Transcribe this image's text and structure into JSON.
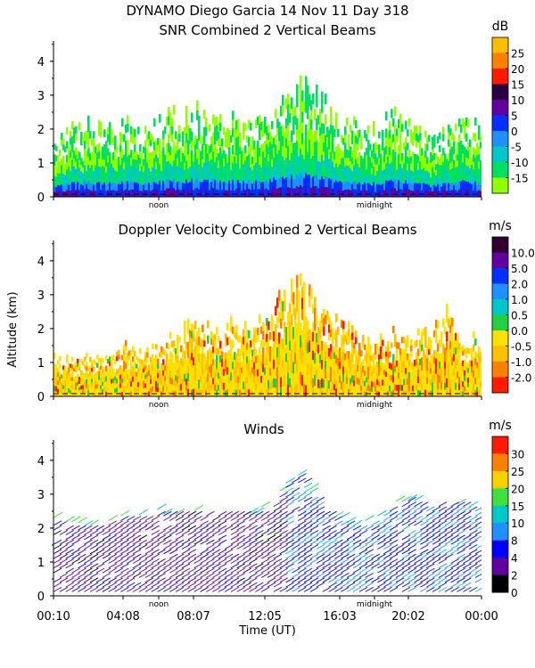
{
  "header": {
    "line1": "DYNAMO Diego Garcia  14 Nov 11 Day 318",
    "line2": "SNR Combined 2 Vertical Beams"
  },
  "shared": {
    "ylabel": "Altitude (km)",
    "xlabel": "Time (UT)",
    "marker_noon": "noon",
    "marker_midnight": "midnight"
  },
  "chart_data": [
    {
      "type": "heatmap",
      "title": "SNR Combined 2 Vertical Beams",
      "ylabel": "Altitude (km)",
      "ylim": [
        0,
        4.6
      ],
      "yticks": [
        0,
        1,
        2,
        3,
        4
      ],
      "markers": [
        "noon",
        "midnight"
      ],
      "colorbar": {
        "unit": "dB",
        "ticks": [
          "25",
          "20",
          "15",
          "10",
          "5",
          "0",
          "-5",
          "-10",
          "-15"
        ],
        "colors": [
          "#ffbf00",
          "#ff8000",
          "#ff1a00",
          "#2a0040",
          "#6000a0",
          "#0030ff",
          "#1e90ff",
          "#00c8c8",
          "#00e060",
          "#90ff00"
        ]
      },
      "envelope": {
        "x_hours": [
          0,
          1,
          2,
          3,
          4,
          5,
          6,
          7,
          8,
          9,
          10,
          11,
          12,
          13,
          14,
          15,
          16,
          17,
          18,
          19,
          20,
          21,
          22,
          23,
          24
        ],
        "echo_top_km": [
          1.6,
          2.1,
          2.2,
          2.2,
          2.3,
          2.2,
          2.4,
          2.5,
          2.6,
          2.5,
          2.4,
          2.3,
          2.5,
          3.0,
          3.4,
          3.2,
          2.3,
          2.4,
          2.0,
          2.5,
          2.3,
          1.8,
          2.0,
          2.4,
          2.0
        ]
      }
    },
    {
      "type": "heatmap",
      "title": "Doppler Velocity Combined 2 Vertical Beams",
      "ylabel": "Altitude (km)",
      "ylim": [
        0,
        4.6
      ],
      "yticks": [
        0,
        1,
        2,
        3,
        4
      ],
      "markers": [
        "noon",
        "midnight"
      ],
      "colorbar": {
        "unit": "m/s",
        "ticks": [
          "10.0",
          "5.0",
          "2.0",
          "1.0",
          "0.5",
          "0.0",
          "-0.5",
          "-1.0",
          "-2.0"
        ],
        "colors": [
          "#300030",
          "#6000a0",
          "#0030ff",
          "#1e90ff",
          "#00c8c8",
          "#20d040",
          "#ffe000",
          "#ffc000",
          "#ff8000",
          "#ff1a00"
        ]
      },
      "envelope": {
        "x_hours": [
          0,
          1,
          2,
          3,
          4,
          5,
          6,
          7,
          8,
          9,
          10,
          11,
          12,
          13,
          14,
          15,
          16,
          17,
          18,
          19,
          20,
          21,
          22,
          23,
          24
        ],
        "echo_top_km": [
          1.5,
          1.1,
          1.2,
          1.4,
          1.6,
          1.4,
          1.6,
          2.0,
          2.4,
          2.1,
          2.3,
          2.0,
          2.4,
          3.2,
          3.6,
          2.6,
          2.2,
          1.9,
          1.6,
          2.0,
          1.8,
          2.0,
          2.6,
          1.7,
          1.8
        ]
      }
    },
    {
      "type": "scatter",
      "title": "Winds",
      "xlabel": "Time (UT)",
      "ylabel": "Altitude (km)",
      "ylim": [
        0,
        4.6
      ],
      "yticks": [
        0,
        1,
        2,
        3,
        4
      ],
      "x_tick_labels": [
        "00:10",
        "04:08",
        "08:07",
        "12:05",
        "16:03",
        "20:02",
        "00:00"
      ],
      "markers": [
        "noon",
        "midnight"
      ],
      "colorbar": {
        "unit": "m/s",
        "ticks": [
          "30",
          "25",
          "20",
          "15",
          "10",
          "8",
          "4",
          "2",
          "0"
        ],
        "colors": [
          "#ff1a00",
          "#ff8000",
          "#ffd000",
          "#40e040",
          "#00c8c8",
          "#1e90ff",
          "#0000ff",
          "#6000a0",
          "#000000"
        ]
      },
      "envelope": {
        "x_hours": [
          0,
          1,
          2,
          3,
          4,
          5,
          6,
          7,
          8,
          9,
          10,
          11,
          12,
          13,
          14,
          15,
          16,
          17,
          18,
          19,
          20,
          21,
          22,
          23,
          24
        ],
        "echo_top_km": [
          2.2,
          2.0,
          2.0,
          2.1,
          2.3,
          2.3,
          2.4,
          2.4,
          2.5,
          2.5,
          2.5,
          2.4,
          2.5,
          3.2,
          3.6,
          2.5,
          2.2,
          2.0,
          2.1,
          2.7,
          2.8,
          2.6,
          2.7,
          2.7,
          2.4
        ]
      }
    }
  ]
}
